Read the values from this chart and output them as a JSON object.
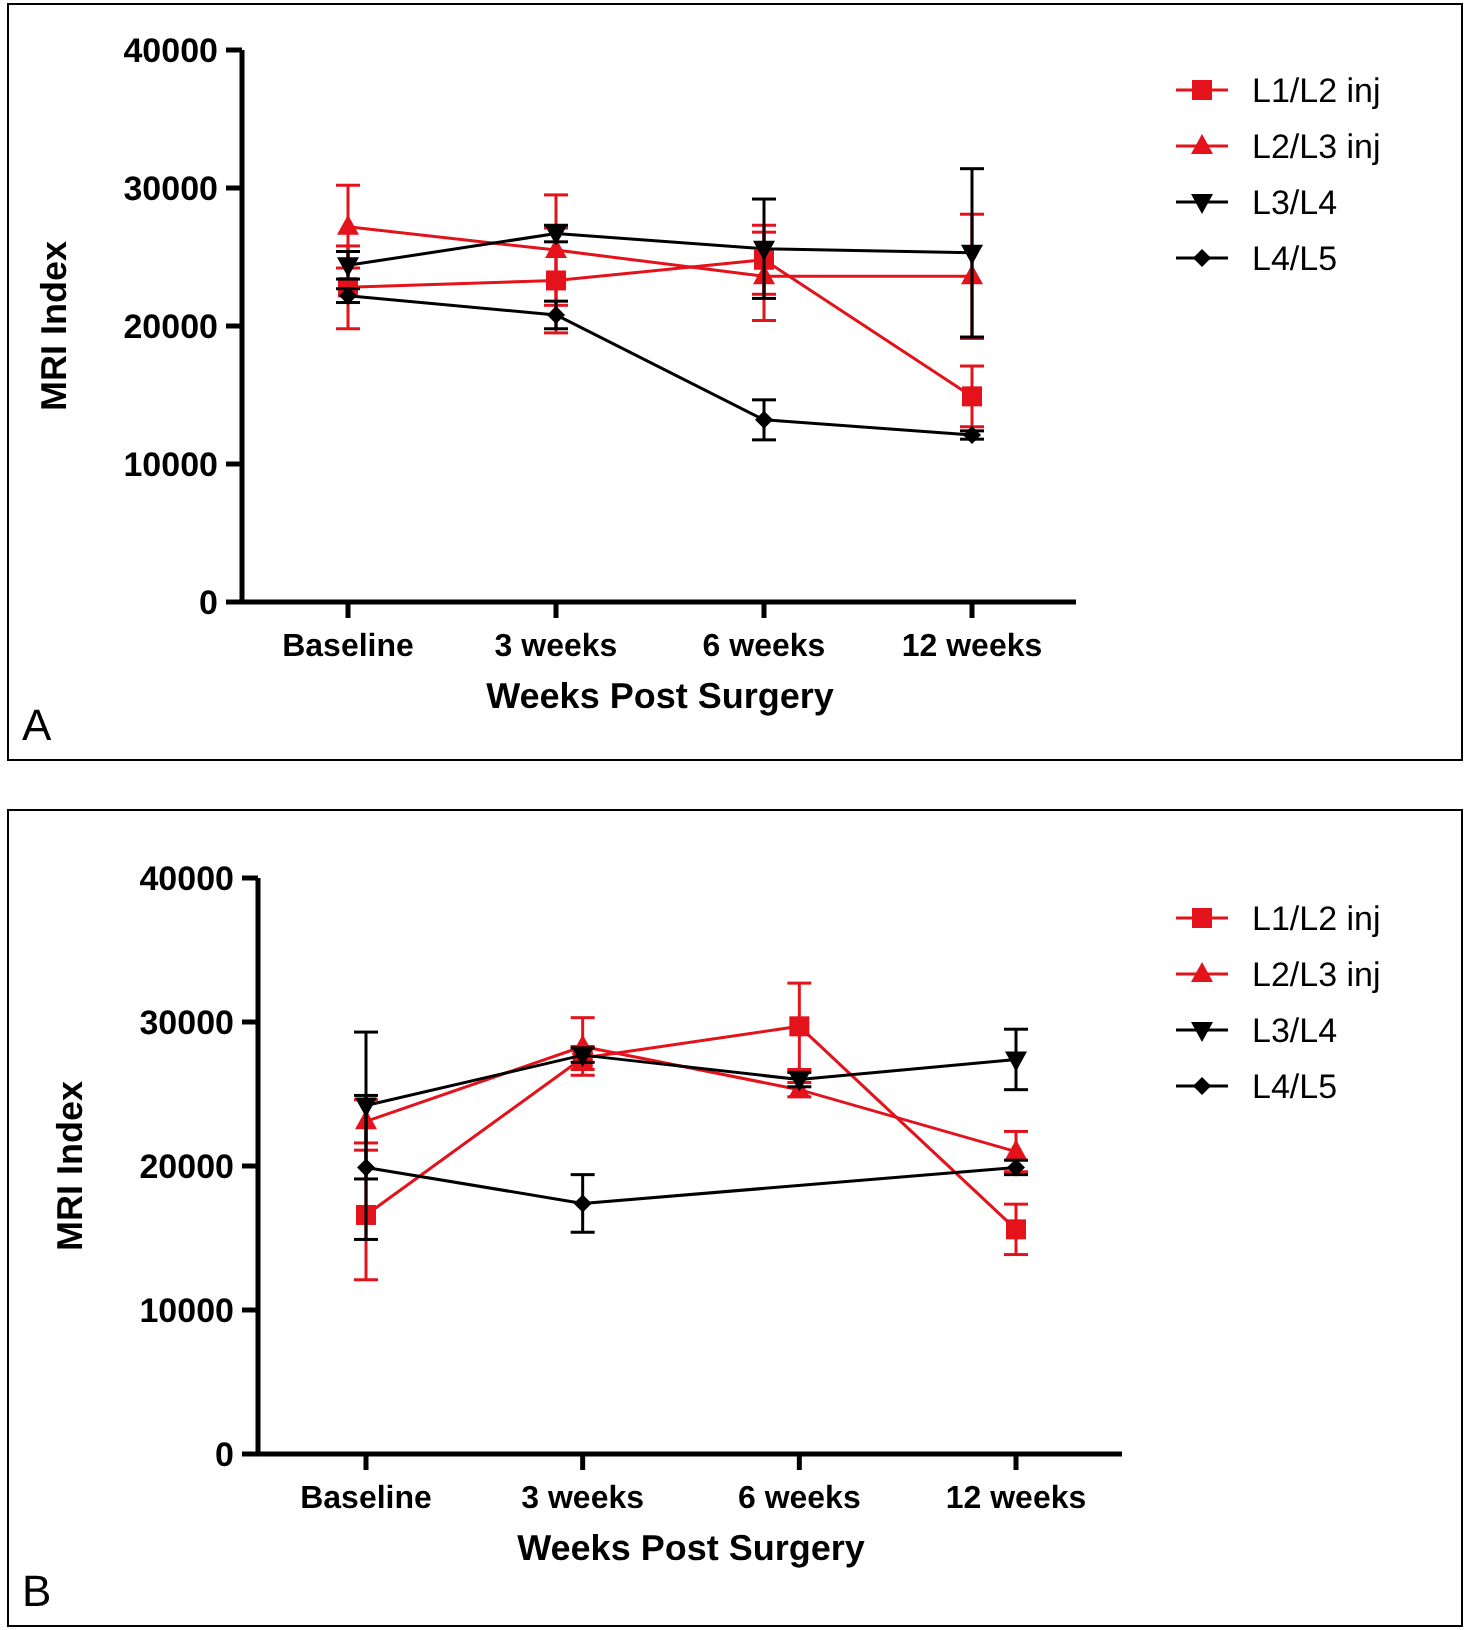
{
  "chart_data": [
    {
      "type": "line",
      "xlabel": "Weeks Post Surgery",
      "ylabel": "MRI Index",
      "categories": [
        "Baseline",
        "3 weeks",
        "6 weeks",
        "12 weeks"
      ],
      "ylim": [
        0,
        40000
      ],
      "yticks": [
        0,
        10000,
        20000,
        30000,
        40000
      ],
      "grid": false,
      "legend": "right",
      "annotations": [
        "A"
      ],
      "series": [
        {
          "name": "L1/L2 inj",
          "color": "#e3121b",
          "marker": "square",
          "values": [
            22800,
            23300,
            24800,
            14900
          ],
          "errors": [
            3000,
            3800,
            2500,
            2200
          ]
        },
        {
          "name": "L2/L3 inj",
          "color": "#e3121b",
          "marker": "triangle",
          "values": [
            27200,
            25500,
            23600,
            23600
          ],
          "errors": [
            3000,
            4000,
            3200,
            4500
          ]
        },
        {
          "name": "L3/L4",
          "color": "#000000",
          "marker": "triangle-down",
          "values": [
            24400,
            26700,
            25600,
            25300
          ],
          "errors": [
            1000,
            600,
            3600,
            6100
          ]
        },
        {
          "name": "L4/L5",
          "color": "#000000",
          "marker": "diamond",
          "values": [
            22200,
            20800,
            13200,
            12100
          ],
          "errors": [
            500,
            1000,
            1450,
            300
          ]
        }
      ]
    },
    {
      "type": "line",
      "xlabel": "Weeks Post Surgery",
      "ylabel": "MRI Index",
      "categories": [
        "Baseline",
        "3 weeks",
        "6 weeks",
        "12 weeks"
      ],
      "ylim": [
        0,
        40000
      ],
      "yticks": [
        0,
        10000,
        20000,
        30000,
        40000
      ],
      "grid": false,
      "legend": "right",
      "annotations": [
        "B"
      ],
      "series": [
        {
          "name": "L1/L2 inj",
          "color": "#e3121b",
          "marker": "square",
          "values": [
            16600,
            27500,
            29700,
            15600
          ],
          "errors": [
            4500,
            800,
            3000,
            1750
          ]
        },
        {
          "name": "L2/L3 inj",
          "color": "#e3121b",
          "marker": "triangle",
          "values": [
            23100,
            28300,
            25300,
            21000
          ],
          "errors": [
            1500,
            2000,
            500,
            1400
          ]
        },
        {
          "name": "L3/L4",
          "color": "#000000",
          "marker": "triangle-down",
          "values": [
            24200,
            27700,
            26000,
            27400
          ],
          "errors": [
            5100,
            500,
            500,
            2100
          ]
        },
        {
          "name": "L4/L5",
          "color": "#000000",
          "marker": "diamond",
          "values": [
            19900,
            17400,
            null,
            19900
          ],
          "errors": [
            5000,
            2000,
            null,
            500
          ]
        }
      ]
    }
  ]
}
